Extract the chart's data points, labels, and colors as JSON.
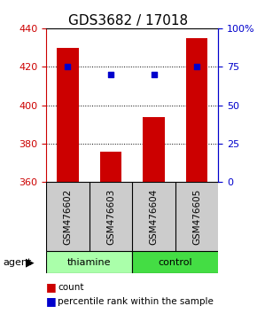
{
  "title": "GDS3682 / 17018",
  "samples": [
    "GSM476602",
    "GSM476603",
    "GSM476604",
    "GSM476605"
  ],
  "bar_values": [
    430,
    376,
    394,
    435
  ],
  "percentile_values": [
    75,
    70,
    70,
    75
  ],
  "left_ylim": [
    360,
    440
  ],
  "left_yticks": [
    360,
    380,
    400,
    420,
    440
  ],
  "right_ylim": [
    0,
    100
  ],
  "right_yticks": [
    0,
    25,
    50,
    75,
    100
  ],
  "right_yticklabels": [
    "0",
    "25",
    "50",
    "75",
    "100%"
  ],
  "bar_color": "#cc0000",
  "percentile_color": "#0000cc",
  "bar_bottom": 360,
  "groups": [
    {
      "label": "thiamine",
      "samples": [
        0,
        1
      ],
      "color": "#aaffaa"
    },
    {
      "label": "control",
      "samples": [
        2,
        3
      ],
      "color": "#44dd44"
    }
  ],
  "sample_box_color": "#cccccc",
  "left_tick_color": "#cc0000",
  "right_tick_color": "#0000cc",
  "title_fontsize": 11,
  "tick_fontsize": 8,
  "sample_fontsize": 7.5,
  "label_fontsize": 8,
  "legend_fontsize": 7.5
}
